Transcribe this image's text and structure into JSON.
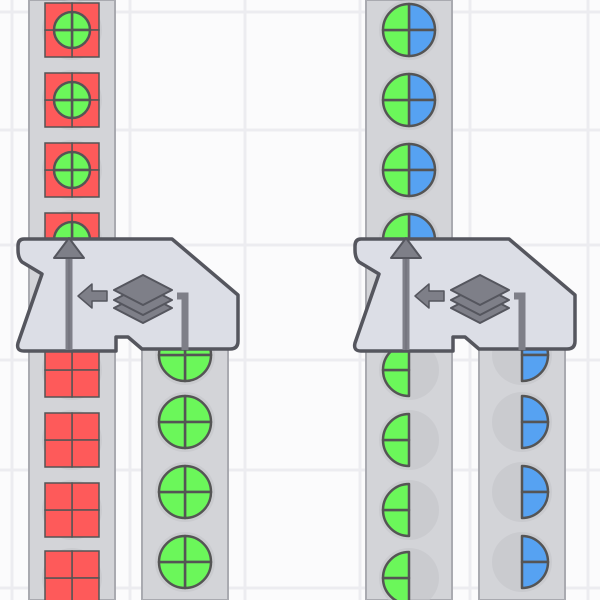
{
  "scene": {
    "game": "factory-builder",
    "colors": {
      "background": "#fbfbfc",
      "grid": "#ececf0",
      "belt": "#d3d4d8",
      "belt_border": "#a9aab0",
      "building": "#dcdee6",
      "building_border": "#55565e",
      "icon": "#7e7f88",
      "red": "#fe5a5a",
      "green": "#6bf75a",
      "blue": "#56a2f2",
      "outline": "#555555"
    },
    "buildings": [
      {
        "type": "stacker",
        "icon": "layers-icon"
      },
      {
        "type": "stacker",
        "icon": "layers-icon"
      }
    ],
    "belts": [
      {
        "id": "belt-1-in",
        "items": [
          "square-red-with-circle-green",
          "square-red-with-circle-green",
          "square-red-with-circle-green",
          "square-red-with-circle-green"
        ]
      },
      {
        "id": "belt-1-out",
        "items": [
          "square-red",
          "square-red",
          "square-red",
          "square-red"
        ]
      },
      {
        "id": "belt-2-out",
        "items": [
          "circle-green",
          "circle-green",
          "circle-green",
          "circle-green"
        ]
      },
      {
        "id": "belt-3-in",
        "items": [
          "circle-half-green-half-blue",
          "circle-half-green-half-blue",
          "circle-half-green-half-blue",
          "circle-half-green-half-blue"
        ]
      },
      {
        "id": "belt-3-out",
        "items": [
          "half-circle-green-left",
          "half-circle-green-left",
          "half-circle-green-left",
          "half-circle-green-left"
        ]
      },
      {
        "id": "belt-4-out",
        "items": [
          "half-circle-blue-right",
          "half-circle-blue-right",
          "half-circle-blue-right",
          "half-circle-blue-right"
        ]
      }
    ]
  }
}
